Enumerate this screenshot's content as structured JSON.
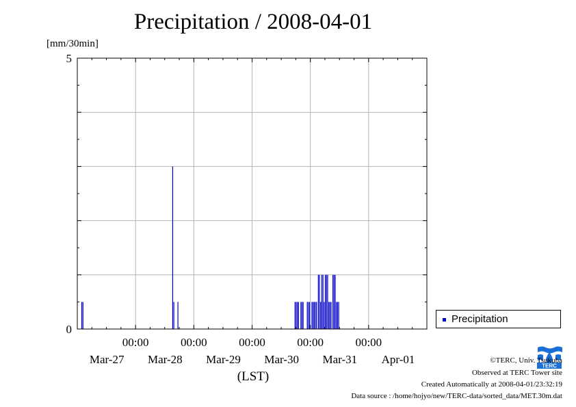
{
  "title": "Precipitation / 2008-04-01",
  "unit_label": "[mm/30min]",
  "colors": {
    "bar": "#0000cc",
    "grid": "#b4b4b4",
    "axis": "#000000"
  },
  "chart_data": {
    "type": "bar",
    "title": "Precipitation / 2008-04-01",
    "ylabel": "[mm/30min]",
    "xlabel": "(LST)",
    "ylim": [
      0,
      5
    ],
    "y_ticks": [
      0,
      5
    ],
    "y_gridlines": [
      1,
      2,
      3,
      4
    ],
    "x_range_days": [
      26.0,
      32.0
    ],
    "x_ticks": [
      {
        "day": 27,
        "time": "00:00",
        "date": "Mar-27"
      },
      {
        "day": 28,
        "time": "00:00",
        "date": "Mar-28"
      },
      {
        "day": 29,
        "time": "00:00",
        "date": "Mar-29"
      },
      {
        "day": 30,
        "time": "00:00",
        "date": "Mar-30"
      },
      {
        "day": 31,
        "time": "00:00",
        "date": "Mar-31"
      },
      {
        "day": 32,
        "time": "",
        "date": "Apr-01"
      }
    ],
    "grid": true,
    "legend_position": "right",
    "series": [
      {
        "name": "Precipitation",
        "x_unit": "day of March (LST)",
        "bar_width_days": 0.0208,
        "points": [
          [
            26.07,
            0.5
          ],
          [
            26.09,
            0.5
          ],
          [
            27.63,
            3.0
          ],
          [
            27.65,
            0.5
          ],
          [
            27.72,
            0.5
          ],
          [
            29.73,
            0.5
          ],
          [
            29.75,
            0.5
          ],
          [
            29.77,
            0.5
          ],
          [
            29.79,
            0.5
          ],
          [
            29.83,
            0.5
          ],
          [
            29.85,
            0.5
          ],
          [
            29.87,
            0.5
          ],
          [
            29.94,
            0.5
          ],
          [
            29.96,
            0.5
          ],
          [
            29.98,
            0.5
          ],
          [
            30.02,
            0.5
          ],
          [
            30.04,
            0.5
          ],
          [
            30.06,
            0.5
          ],
          [
            30.08,
            0.5
          ],
          [
            30.1,
            0.5
          ],
          [
            30.13,
            1.0
          ],
          [
            30.15,
            1.0
          ],
          [
            30.17,
            0.5
          ],
          [
            30.19,
            1.0
          ],
          [
            30.21,
            1.0
          ],
          [
            30.23,
            0.5
          ],
          [
            30.25,
            1.0
          ],
          [
            30.27,
            1.0
          ],
          [
            30.29,
            1.0
          ],
          [
            30.31,
            0.5
          ],
          [
            30.33,
            0.5
          ],
          [
            30.35,
            0.5
          ],
          [
            30.38,
            1.0
          ],
          [
            30.4,
            1.0
          ],
          [
            30.42,
            1.0
          ],
          [
            30.44,
            0.5
          ],
          [
            30.46,
            0.5
          ],
          [
            30.48,
            0.5
          ]
        ]
      }
    ]
  },
  "legend": {
    "label": "Precipitation"
  },
  "footer": {
    "copyright": "©TERC, Univ. Tsukuba",
    "site": "Observed at TERC Tower site",
    "created": "Created Automatically at 2008-04-01/23:32:19",
    "source": "Data source : /home/hojyo/new/TERC-data/sorted_data/MET.30m.dat"
  },
  "logo": {
    "text": "TERC",
    "icon": "terc-logo-icon"
  }
}
